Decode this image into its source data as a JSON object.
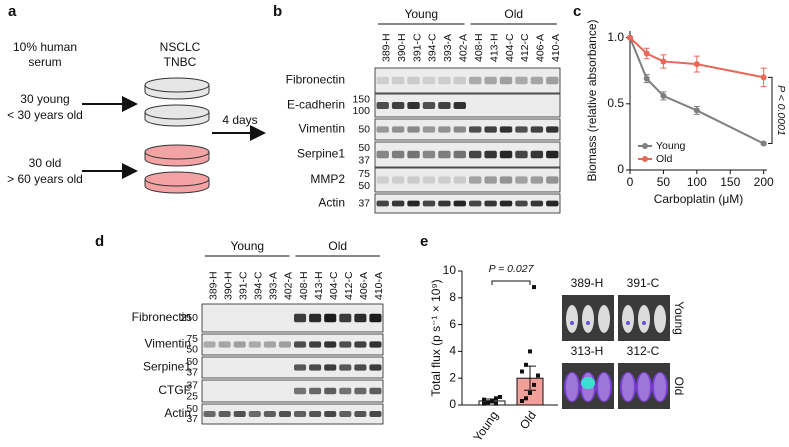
{
  "panel_labels": [
    "a",
    "b",
    "c",
    "d",
    "e"
  ],
  "schematic": {
    "serum": [
      "10% human",
      "serum"
    ],
    "cell_lines": [
      "NSCLC",
      "TNBC"
    ],
    "young": [
      "30 young",
      "< 30 years old"
    ],
    "old": [
      "30 old",
      "> 60 years old"
    ],
    "duration": "4 days"
  },
  "blot_b": {
    "groups": [
      "Young",
      "Old"
    ],
    "lanes": [
      "389-H",
      "390-H",
      "391-C",
      "394-C",
      "393-A",
      "402-A",
      "408-H",
      "413-H",
      "404-C",
      "412-C",
      "406-A",
      "410-A"
    ],
    "rows": [
      {
        "label": "Fibronectin",
        "markers": []
      },
      {
        "label": "E-cadherin",
        "markers": [
          "150",
          "100"
        ]
      },
      {
        "label": "Vimentin",
        "markers": [
          "50"
        ]
      },
      {
        "label": "Serpine1",
        "markers": [
          "50",
          "37"
        ]
      },
      {
        "label": "MMP2",
        "markers": [
          "75",
          "50"
        ]
      },
      {
        "label": "Actin",
        "markers": [
          "37"
        ]
      }
    ]
  },
  "blot_d": {
    "groups": [
      "Young",
      "Old"
    ],
    "lanes": [
      "389-H",
      "390-H",
      "391-C",
      "394-C",
      "393-A",
      "402-A",
      "408-H",
      "413-H",
      "404-C",
      "412-C",
      "406-A",
      "410-A"
    ],
    "rows": [
      {
        "label": "Fibronectin",
        "markers": [
          "250"
        ]
      },
      {
        "label": "Vimentin",
        "markers": [
          "75",
          "50"
        ]
      },
      {
        "label": "Serpine1",
        "markers": [
          "50",
          "37"
        ]
      },
      {
        "label": "CTGF",
        "markers": [
          "37",
          "25"
        ]
      },
      {
        "label": "Actin",
        "markers": [
          "50",
          "37"
        ]
      }
    ]
  },
  "imaging": {
    "samples": [
      "389-H",
      "391-C",
      "313-H",
      "312-C"
    ],
    "groups": [
      "Young",
      "Old"
    ]
  },
  "chart_data": [
    {
      "type": "line",
      "x_label": "Carboplatin (μM)",
      "y_label": "Biomass (relative absorbance)",
      "annotation": "P < 0.0001",
      "x": [
        0,
        25,
        50,
        100,
        200
      ],
      "series": [
        {
          "name": "Young",
          "color": "#7f7f7f",
          "values": [
            1.0,
            0.69,
            0.56,
            0.45,
            0.2
          ],
          "errors": [
            0,
            0.03,
            0.03,
            0.03,
            0.01
          ]
        },
        {
          "name": "Old",
          "color": "#e8685a",
          "values": [
            1.0,
            0.88,
            0.82,
            0.8,
            0.7
          ],
          "errors": [
            0,
            0.04,
            0.05,
            0.06,
            0.07
          ]
        }
      ],
      "xlim": [
        0,
        205
      ],
      "ylim": [
        0,
        1.05
      ],
      "xticks": [
        0,
        50,
        100,
        150,
        200
      ],
      "yticks": [
        0,
        0.5,
        {
          "value": 1,
          "label": "1.0"
        }
      ],
      "legend": "lower left"
    },
    {
      "type": "bar",
      "y_label": "Total flux (p s⁻¹ × 10⁹)",
      "annotation": "P = 0.027",
      "categories": [
        "Young",
        "Old"
      ],
      "values": [
        0.3,
        2.0
      ],
      "errors": [
        0.15,
        0.9
      ],
      "colors": [
        "#ffffff",
        "#f4a09a"
      ],
      "points": [
        [
          0.1,
          0.2,
          0.3,
          0.5,
          0.6,
          0.4,
          0.2,
          0.3,
          0.1
        ],
        [
          0.3,
          0.5,
          0.9,
          1.5,
          2.2,
          2.5,
          3.0,
          4.0,
          8.8
        ]
      ],
      "ylim": [
        0,
        10
      ],
      "yticks": [
        0,
        2,
        4,
        6,
        8,
        10
      ]
    }
  ]
}
